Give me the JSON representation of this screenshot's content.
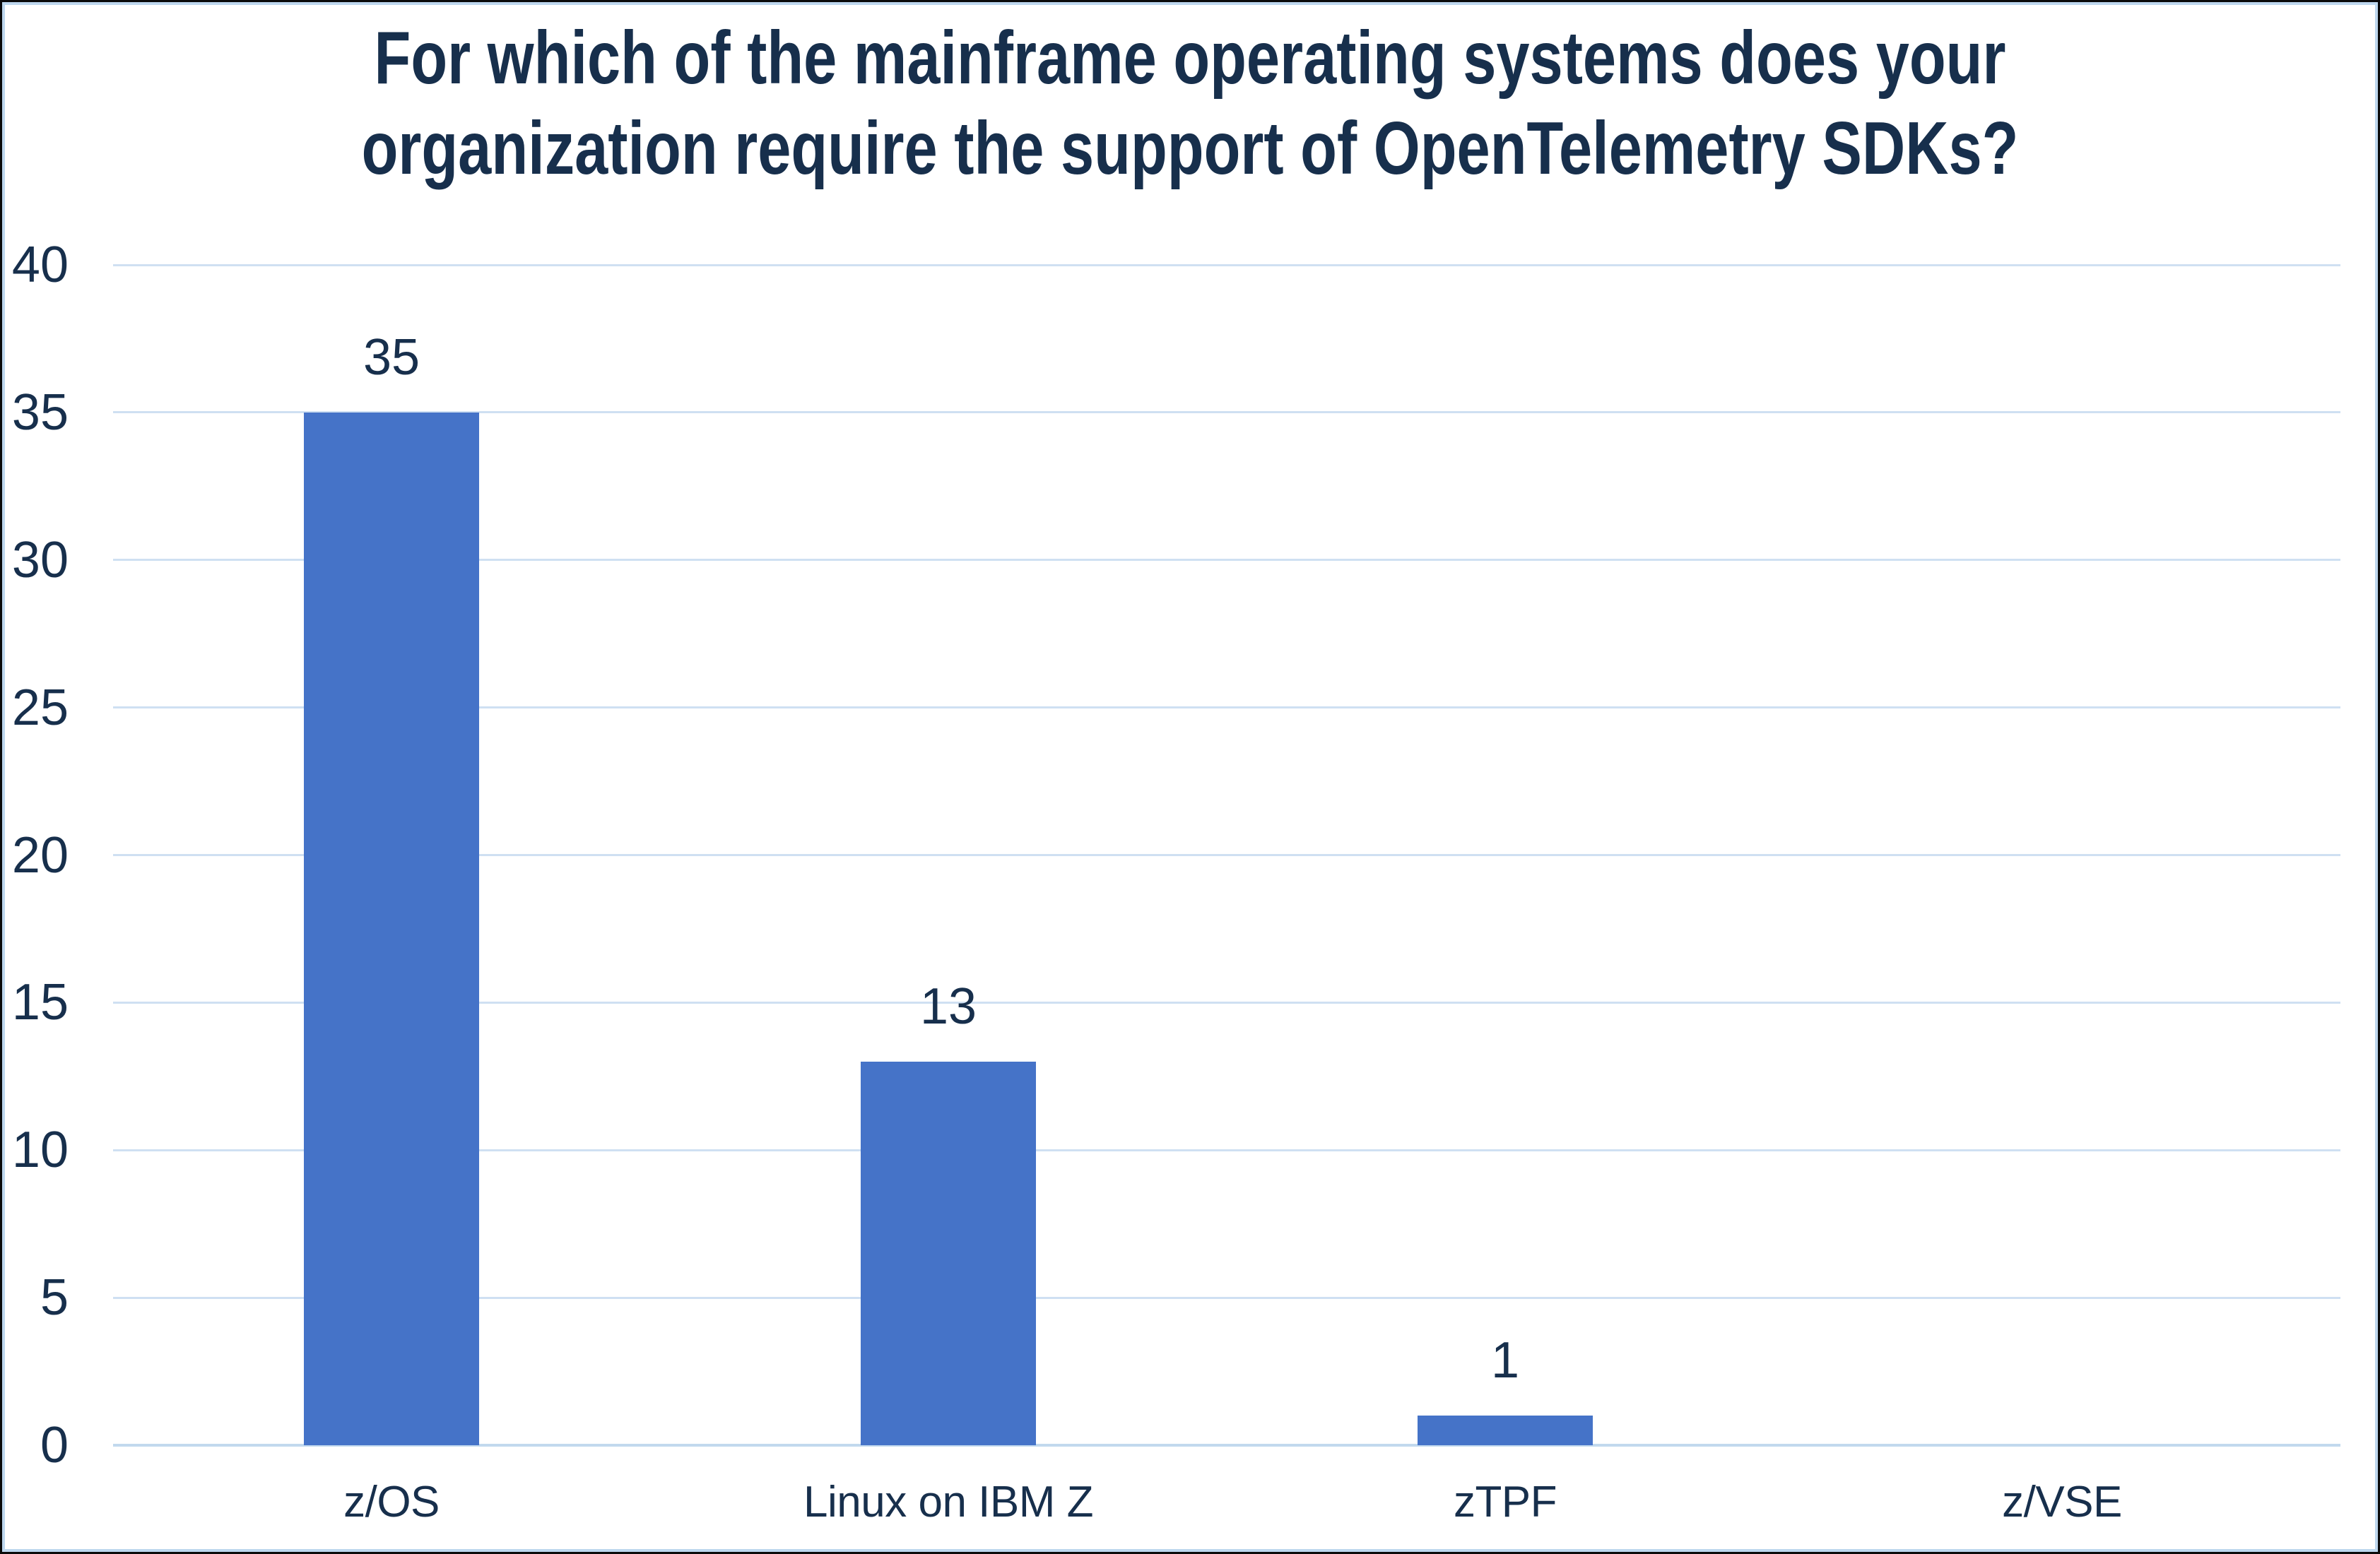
{
  "chart_data": {
    "type": "bar",
    "title": "For which of the mainframe operating systems does your organization require the support of OpenTelemetry SDKs?",
    "title_lines": [
      "For which of the mainframe operating systems does your",
      "organization require the support of OpenTelemetry SDKs?"
    ],
    "categories": [
      "z/OS",
      "Linux on IBM Z",
      "zTPF",
      "z/VSE"
    ],
    "values": [
      35,
      13,
      1,
      0
    ],
    "ylim": [
      0,
      40
    ],
    "yticks": [
      0,
      5,
      10,
      15,
      20,
      25,
      30,
      35,
      40
    ],
    "grid": true,
    "legend_position": "none",
    "show_value_labels": true,
    "colors": {
      "bar": "#4573c8",
      "text": "#172f4c",
      "gridline": "#cfe0f2",
      "axis_baseline": "#c2d9ee",
      "inner_border": "#bdd7ee",
      "outer_border": "#0a0a0a",
      "background": "#ffffff"
    }
  }
}
